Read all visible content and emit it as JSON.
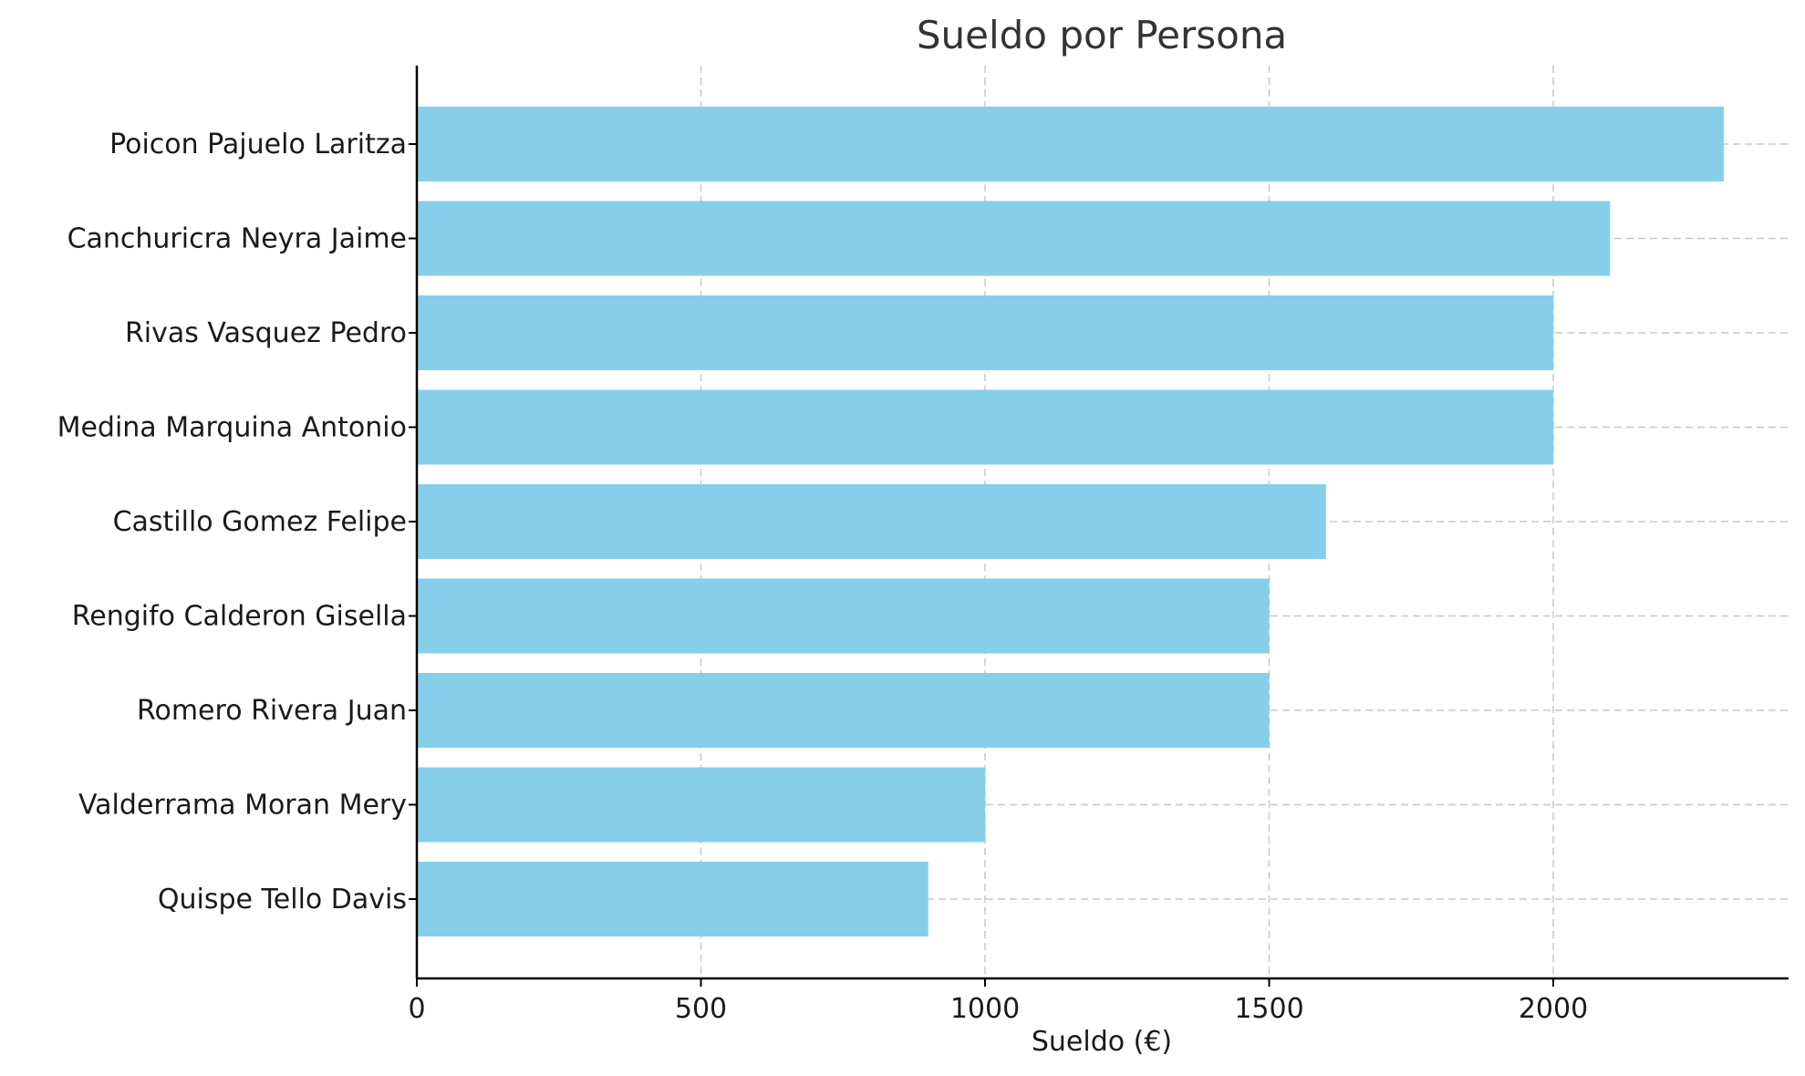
{
  "chart_data": {
    "type": "bar",
    "orientation": "horizontal",
    "title": "Sueldo por Persona",
    "xlabel": "Sueldo (€)",
    "ylabel": "",
    "xlim": [
      0,
      2420
    ],
    "xticks": [
      0,
      500,
      1000,
      1500,
      2000
    ],
    "grid": true,
    "bar_color": "#87CEEB",
    "categories": [
      "Poicon Pajuelo Laritza",
      "Canchuricra Neyra Jaime",
      "Rivas Vasquez Pedro",
      "Medina Marquina Antonio",
      "Castillo Gomez Felipe",
      "Rengifo Calderon Gisella",
      "Romero Rivera Juan",
      "Valderrama Moran Mery",
      "Quispe Tello Davis"
    ],
    "values": [
      2300,
      2100,
      2000,
      2000,
      1600,
      1500,
      1500,
      1000,
      900
    ]
  }
}
